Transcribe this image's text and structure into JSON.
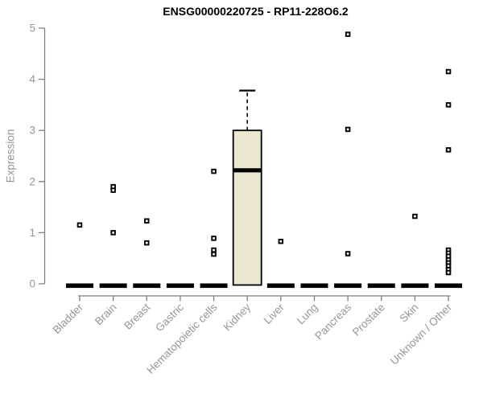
{
  "chart_data": {
    "type": "boxplot",
    "title": "ENSG00000220725 - RP11-228O6.2",
    "ylabel": "Expression",
    "xlabel": "",
    "ylim": [
      0,
      5
    ],
    "yticks": [
      0,
      1,
      2,
      3,
      4,
      5
    ],
    "grid": false,
    "legend": "none",
    "categories": [
      "Bladder",
      "Brain",
      "Breast",
      "Gastric",
      "Hematopoietic cells",
      "Kidney",
      "Liver",
      "Lung",
      "Pancreas",
      "Prostate",
      "Skin",
      "Unknown / Other"
    ],
    "boxes": [
      {
        "category": "Bladder",
        "q1": 0,
        "median": 0,
        "q3": 0,
        "whisker_low": 0,
        "whisker_high": 0,
        "outliers": [
          1.15
        ]
      },
      {
        "category": "Brain",
        "q1": 0,
        "median": 0,
        "q3": 0,
        "whisker_low": 0,
        "whisker_high": 0,
        "outliers": [
          1.9,
          1.83,
          1.0
        ]
      },
      {
        "category": "Breast",
        "q1": 0,
        "median": 0,
        "q3": 0,
        "whisker_low": 0,
        "whisker_high": 0,
        "outliers": [
          1.23,
          0.8
        ]
      },
      {
        "category": "Gastric",
        "q1": 0,
        "median": 0,
        "q3": 0,
        "whisker_low": 0,
        "whisker_high": 0,
        "outliers": []
      },
      {
        "category": "Hematopoietic cells",
        "q1": 0,
        "median": 0,
        "q3": 0,
        "whisker_low": 0,
        "whisker_high": 0,
        "outliers": [
          2.2,
          0.89,
          0.66,
          0.58
        ]
      },
      {
        "category": "Kidney",
        "q1": 0,
        "median": 2.22,
        "q3": 3.0,
        "whisker_low": 0,
        "whisker_high": 3.78,
        "outliers": []
      },
      {
        "category": "Liver",
        "q1": 0,
        "median": 0,
        "q3": 0,
        "whisker_low": 0,
        "whisker_high": 0,
        "outliers": [
          0.83
        ]
      },
      {
        "category": "Lung",
        "q1": 0,
        "median": 0,
        "q3": 0,
        "whisker_low": 0,
        "whisker_high": 0,
        "outliers": []
      },
      {
        "category": "Pancreas",
        "q1": 0,
        "median": 0,
        "q3": 0,
        "whisker_low": 0,
        "whisker_high": 0,
        "outliers": [
          4.88,
          3.02,
          0.59
        ]
      },
      {
        "category": "Prostate",
        "q1": 0,
        "median": 0,
        "q3": 0,
        "whisker_low": 0,
        "whisker_high": 0,
        "outliers": []
      },
      {
        "category": "Skin",
        "q1": 0,
        "median": 0,
        "q3": 0,
        "whisker_low": 0,
        "whisker_high": 0,
        "outliers": [
          1.32
        ]
      },
      {
        "category": "Unknown / Other",
        "q1": 0,
        "median": 0,
        "q3": 0,
        "whisker_low": 0,
        "whisker_high": 0,
        "outliers": [
          4.15,
          3.5,
          2.62,
          0.66,
          0.6,
          0.54,
          0.47,
          0.41,
          0.35,
          0.28,
          0.22
        ]
      }
    ],
    "colors": {
      "box_fill": "#ECE8CF",
      "box_stroke": "#000000",
      "median_color": "#000000",
      "zero_bar_color": "#000000",
      "point_color": "#000000",
      "point_hole": "#ffffff",
      "axis_color": "#7f7f7f",
      "tick_text_color": "#969696",
      "title_color": "#000000",
      "background": "#ffffff"
    }
  }
}
